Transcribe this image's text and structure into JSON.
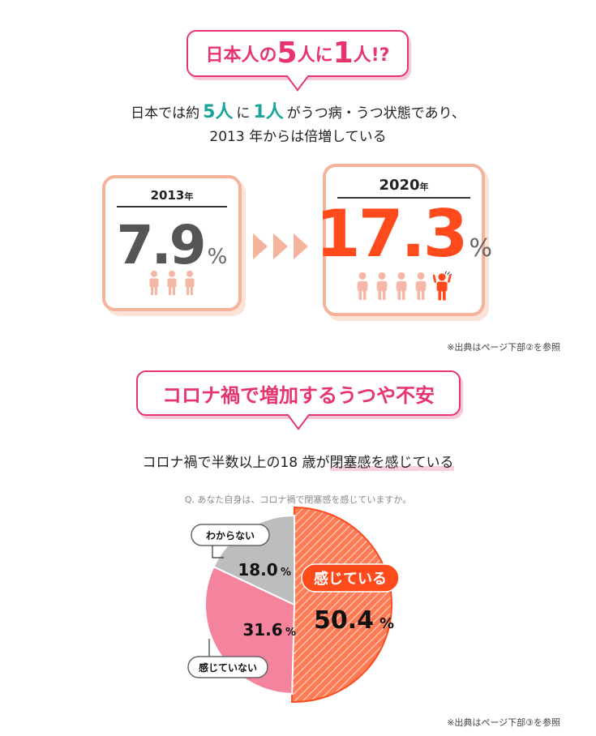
{
  "section1": {
    "title_pre": "日本人の",
    "title_num1": "5",
    "title_mid": "人に",
    "title_num2": "1",
    "title_post": "人!?",
    "lead_line1_pre": "日本では約",
    "lead_num1": "5人",
    "lead_mid": "に",
    "lead_num2": "1人",
    "lead_line1_post": "がうつ病・うつ状態であり、",
    "lead_line2": "2013 年からは倍増している",
    "card_2013": {
      "year": "2013",
      "year_unit": "年",
      "value": "7.9",
      "unit": "%"
    },
    "card_2020": {
      "year": "2020",
      "year_unit": "年",
      "value": "17.3",
      "unit": "%"
    },
    "source": "※出典はページ下部②を参照"
  },
  "section2": {
    "title": "コロナ禍で増加するうつや不安",
    "lead_pre": "コロナ禍で半数以上の18 歳が",
    "lead_highlight": "閉塞感を感じている",
    "question": "Q. あなた自身は、コロナ禍で閉塞感を感じていますか。",
    "source": "※出典はページ下部③を参照"
  },
  "colors": {
    "pink": "#e8346d",
    "orange": "#ff4a1c",
    "teal": "#1aa59a",
    "salmon": "#f5b39b",
    "gray_slice": "#bdbdbd",
    "pink_slice": "#f4839e"
  },
  "chart_data": [
    {
      "type": "bar",
      "categories": [
        "2013年",
        "2020年"
      ],
      "values": [
        7.9,
        17.3
      ],
      "unit": "%"
    },
    {
      "type": "pie",
      "slices": [
        {
          "label": "感じている",
          "value": 50.4
        },
        {
          "label": "感じていない",
          "value": 31.6
        },
        {
          "label": "わからない",
          "value": 18.0
        }
      ],
      "unit": "%"
    }
  ]
}
